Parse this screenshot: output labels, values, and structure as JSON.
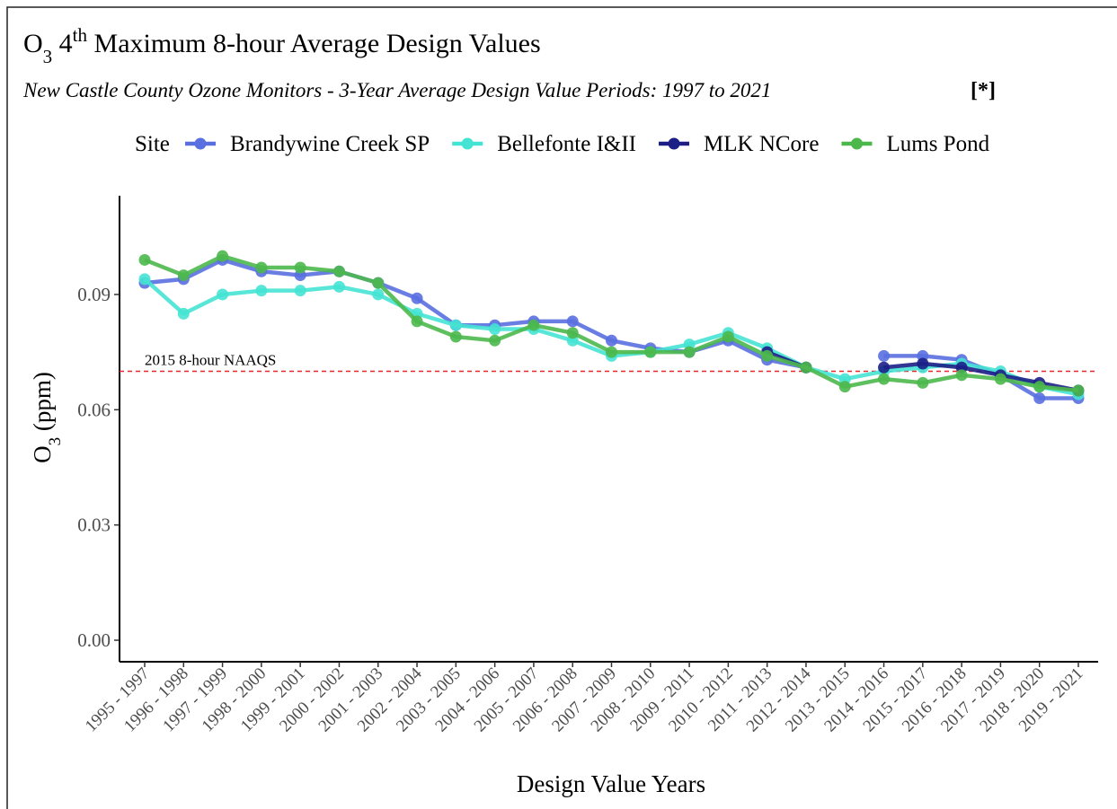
{
  "chart_data": {
    "type": "line",
    "title": [
      "O",
      "3",
      " 4",
      "th",
      " Maximum 8-hour Average Design Values"
    ],
    "subtitle": "New Castle County Ozone Monitors - 3-Year Average Design Value Periods: 1997 to 2021",
    "subtitle_note": "[*]",
    "legend_title": "Site",
    "x_label": "Design Value Years",
    "y_label": [
      "O",
      "3",
      " (ppm)"
    ],
    "categories": [
      "1995 - 1997",
      "1996 - 1998",
      "1997 - 1999",
      "1998 - 2000",
      "1999 - 2001",
      "2000 - 2002",
      "2001 - 2003",
      "2002 - 2004",
      "2003 - 2005",
      "2004 - 2006",
      "2005 - 2007",
      "2006 - 2008",
      "2007 - 2009",
      "2008 - 2010",
      "2009 - 2011",
      "2010 - 2012",
      "2011 - 2013",
      "2012 - 2014",
      "2013 - 2015",
      "2014 - 2016",
      "2015 - 2017",
      "2016 - 2018",
      "2017 - 2019",
      "2018 - 2020",
      "2019 - 2021"
    ],
    "series": [
      {
        "name": "Brandywine Creek SP",
        "color": "#5a6fe0",
        "values": [
          0.093,
          0.094,
          0.099,
          0.096,
          0.095,
          0.096,
          0.093,
          0.089,
          0.082,
          0.082,
          0.083,
          0.083,
          0.078,
          0.076,
          0.075,
          0.078,
          0.073,
          0.071,
          null,
          0.074,
          0.074,
          0.073,
          0.069,
          0.063,
          0.063
        ]
      },
      {
        "name": "Bellefonte I&II",
        "color": "#45e3d3",
        "values": [
          0.094,
          0.085,
          0.09,
          0.091,
          0.091,
          0.092,
          0.09,
          0.085,
          0.082,
          0.081,
          0.081,
          0.078,
          0.074,
          0.075,
          0.077,
          0.08,
          0.076,
          0.071,
          0.068,
          0.07,
          0.071,
          0.072,
          0.07,
          0.066,
          0.064
        ]
      },
      {
        "name": "MLK NCore",
        "color": "#1c1f86",
        "values": [
          null,
          null,
          null,
          null,
          null,
          null,
          null,
          null,
          null,
          null,
          null,
          null,
          null,
          null,
          null,
          null,
          0.075,
          0.071,
          null,
          0.071,
          0.072,
          0.071,
          0.069,
          0.067,
          0.065
        ]
      },
      {
        "name": "Lums Pond",
        "color": "#4cb84c",
        "values": [
          0.099,
          0.095,
          0.1,
          0.097,
          0.097,
          0.096,
          0.093,
          0.083,
          0.079,
          0.078,
          0.082,
          0.08,
          0.075,
          0.075,
          0.075,
          0.079,
          0.074,
          0.071,
          0.066,
          0.068,
          0.067,
          0.069,
          0.068,
          0.066,
          0.065
        ]
      }
    ],
    "reference_line": {
      "value": 0.07,
      "label": "2015 8-hour NAAQS",
      "color": "#e8262b"
    },
    "ylim": [
      -0.0056,
      0.1157
    ],
    "yticks": [
      {
        "value": 0,
        "label": "0.00"
      },
      {
        "value": 0.03,
        "label": "0.03"
      },
      {
        "value": 0.06,
        "label": "0.06"
      },
      {
        "value": 0.09,
        "label": "0.09"
      }
    ],
    "grid": false
  }
}
